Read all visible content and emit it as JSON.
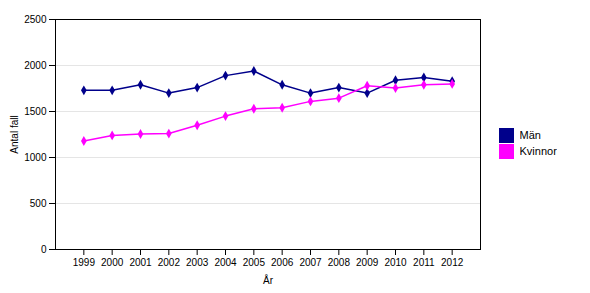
{
  "chart_data": {
    "type": "line",
    "x": [
      1999,
      2000,
      2001,
      2002,
      2003,
      2004,
      2005,
      2006,
      2007,
      2008,
      2009,
      2010,
      2011,
      2012
    ],
    "series": [
      {
        "name": "Män",
        "color": "#00008B",
        "values": [
          1730,
          1730,
          1790,
          1700,
          1760,
          1890,
          1940,
          1790,
          1700,
          1760,
          1700,
          1840,
          1870,
          1830
        ]
      },
      {
        "name": "Kvinnor",
        "color": "#FF00FF",
        "values": [
          1180,
          1240,
          1255,
          1260,
          1350,
          1450,
          1530,
          1540,
          1610,
          1645,
          1780,
          1755,
          1790,
          1800
        ]
      }
    ],
    "xlabel": "År",
    "ylabel": "Antal fall",
    "xlim": [
      1998,
      2013
    ],
    "xticks": [
      1999,
      2000,
      2001,
      2002,
      2003,
      2004,
      2005,
      2006,
      2007,
      2008,
      2009,
      2010,
      2011,
      2012
    ],
    "ylim": [
      0,
      2500
    ],
    "yticks": [
      0,
      500,
      1000,
      1500,
      2000,
      2500
    ],
    "grid": true,
    "legend": "right",
    "marker": "diamond"
  }
}
